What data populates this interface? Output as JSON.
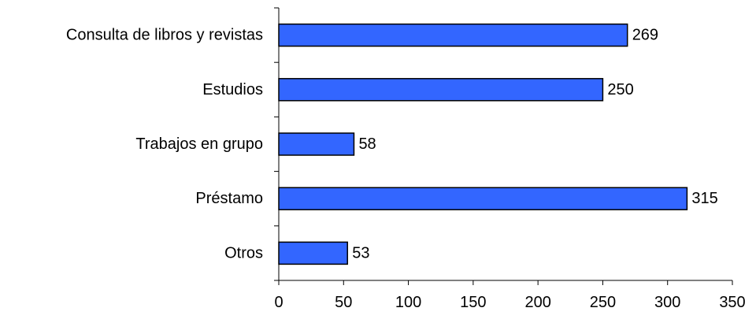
{
  "chart_data": {
    "type": "bar",
    "orientation": "horizontal",
    "categories": [
      "Consulta de libros y revistas",
      "Estudios",
      "Trabajos en grupo",
      "Préstamo",
      "Otros"
    ],
    "values": [
      269,
      250,
      58,
      315,
      53
    ],
    "xlim": [
      0,
      350
    ],
    "xticks": [
      0,
      50,
      100,
      150,
      200,
      250,
      300,
      350
    ],
    "grid": false,
    "legend": "none",
    "colors": {
      "bar_fill": "#3366ff",
      "bar_stroke": "#000000",
      "axis": "#000000"
    }
  }
}
